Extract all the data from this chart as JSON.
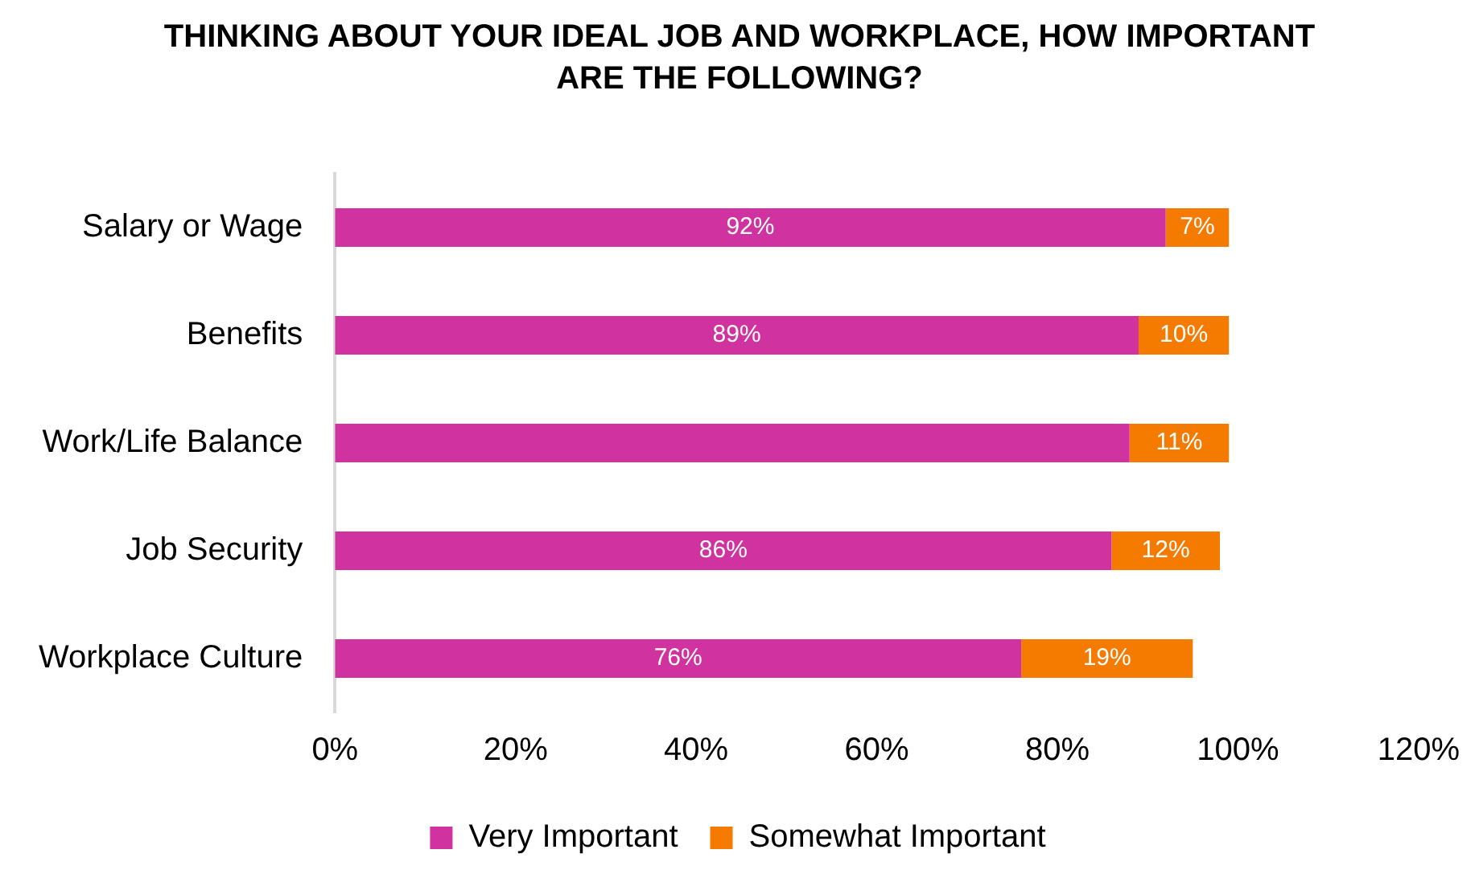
{
  "chart_data": {
    "type": "bar",
    "orientation": "horizontal",
    "stacked": true,
    "title": "THINKING ABOUT YOUR IDEAL JOB AND WORKPLACE, HOW IMPORTANT ARE THE FOLLOWING?",
    "categories": [
      "Salary or Wage",
      "Benefits",
      "Work/Life Balance",
      "Job Security",
      "Workplace Culture"
    ],
    "series": [
      {
        "name": "Very Important",
        "color": "#d033a0",
        "values": [
          92,
          89,
          88,
          86,
          76
        ],
        "value_labels": [
          "92%",
          "89%",
          null,
          "86%",
          "76%"
        ]
      },
      {
        "name": "Somewhat Important",
        "color": "#f47a00",
        "values": [
          7,
          10,
          11,
          12,
          19
        ],
        "value_labels": [
          "7%",
          "10%",
          "11%",
          "12%",
          "19%"
        ]
      }
    ],
    "xlim": [
      0,
      120
    ],
    "xticks": [
      {
        "value": 0,
        "label": "0%"
      },
      {
        "value": 20,
        "label": "20%"
      },
      {
        "value": 40,
        "label": "40%"
      },
      {
        "value": 60,
        "label": "60%"
      },
      {
        "value": 80,
        "label": "80%"
      },
      {
        "value": 100,
        "label": "100%"
      },
      {
        "value": 120,
        "label": "120%"
      }
    ],
    "grid": false,
    "legend": "bottom"
  }
}
